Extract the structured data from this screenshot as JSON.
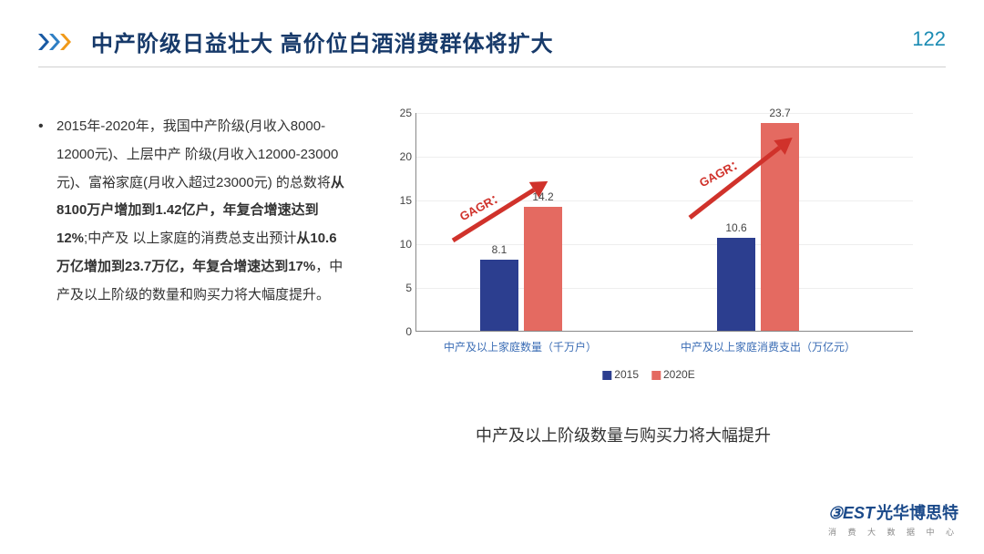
{
  "header": {
    "title": "中产阶级日益壮大 高价位白酒消费群体将扩大",
    "page_number": "122",
    "chevron_colors": [
      "#1a5aa3",
      "#2f7fc4",
      "#f09a1a"
    ]
  },
  "paragraph": {
    "pre1": "2015年-2020年，我国中产阶级(月收入8000-12000元)、上层中产 阶级(月收入12000-23000元)、富裕家庭(月收入超过23000元) 的总数将",
    "bold1": "从8100万户增加到1.42亿户，年复合增速达到12%",
    "mid": ";中产及 以上家庭的消费总支出预计",
    "bold2": "从10.6万亿增加到23.7万亿，年复合增速达到17%",
    "post": "，中产及以上阶级的数量和购买力将大幅度提升。"
  },
  "chart": {
    "type": "bar",
    "ylim": [
      0,
      25
    ],
    "ytick_step": 5,
    "yticks": [
      "0",
      "5",
      "10",
      "15",
      "20",
      "25"
    ],
    "series_colors": {
      "2015": "#2c3e8f",
      "2020E": "#e46a61"
    },
    "groups": [
      {
        "xlabel": "中产及以上家庭数量（千万户）",
        "v2015": 8.1,
        "v2020": 14.2,
        "l2015": "8.1",
        "l2020": "14.2"
      },
      {
        "xlabel": "中产及以上家庭消费支出（万亿元）",
        "v2015": 10.6,
        "v2020": 23.7,
        "l2015": "10.6",
        "l2020": "23.7"
      }
    ],
    "legend": {
      "a": "2015",
      "b": "2020E"
    },
    "gagr_text": "GAGR：",
    "arrow_color": "#d0322b",
    "caption": "中产及以上阶级数量与购买力将大幅提升",
    "tick_color": "#444444",
    "axis_color": "#888888",
    "grid_color": "#eeeeee"
  },
  "footer": {
    "logo_mark": "③EST",
    "logo_cn": "光华博思特",
    "logo_sub": "消 费 大 数 据 中 心"
  }
}
